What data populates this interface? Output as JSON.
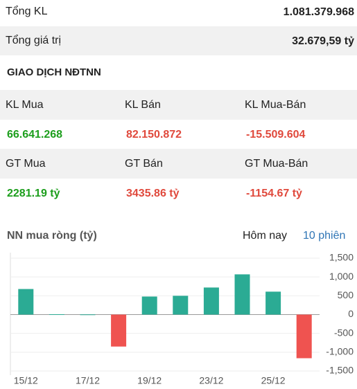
{
  "summary": [
    {
      "label": "Tổng KL",
      "value": "1.081.379.968"
    },
    {
      "label": "Tổng giá trị",
      "value": "32.679,59 tỷ"
    }
  ],
  "section_title": "GIAO DỊCH NĐTNN",
  "stats": [
    [
      {
        "label": "KL Mua",
        "value": "66.641.268"
      },
      {
        "label": "KL Bán",
        "value": "82.150.872"
      },
      {
        "label": "KL Mua-Bán",
        "value": "-15.509.604"
      }
    ],
    [
      {
        "label": "GT Mua",
        "value": "2281.19 tỷ"
      },
      {
        "label": "GT Bán",
        "value": "3435.86 tỷ"
      },
      {
        "label": "GT Mua-Bán",
        "value": "-1154.67 tỷ"
      }
    ]
  ],
  "chart_header": {
    "title": "NN mua ròng (tỷ)",
    "tabs": [
      "Hôm nay",
      "10 phiên"
    ]
  },
  "chart_data": {
    "type": "bar",
    "categories": [
      "15/12",
      null,
      "17/12",
      null,
      "19/12",
      null,
      "23/12",
      null,
      "25/12",
      null
    ],
    "values": [
      680,
      10,
      5,
      -850,
      480,
      500,
      720,
      1070,
      610,
      -1160
    ],
    "positive_color": "#2bab94",
    "negative_color": "#ef5350",
    "ylim": [
      -1500,
      1500
    ],
    "yticks": [
      {
        "value": 1500,
        "label": "1,500"
      },
      {
        "value": 1000,
        "label": "1,000"
      },
      500,
      0,
      -500,
      {
        "value": -1000,
        "label": "-1,000"
      },
      {
        "value": -1500,
        "label": "-1,500"
      }
    ],
    "grid": true
  }
}
